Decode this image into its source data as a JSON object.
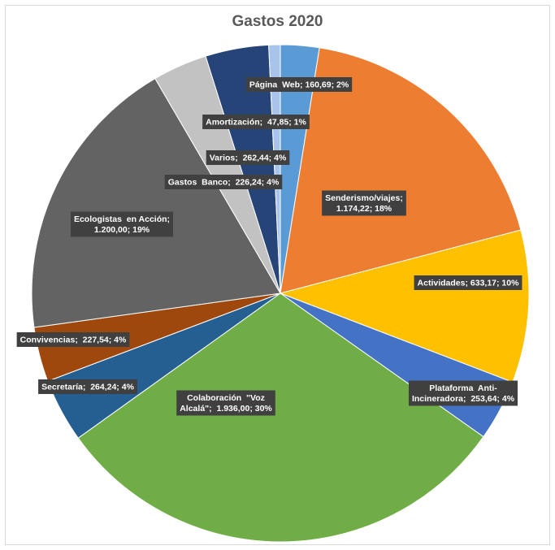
{
  "chart_data": {
    "type": "pie",
    "title": "Gastos 2020",
    "slices": [
      {
        "name": "Página Web",
        "value": "160,69",
        "percent": "2%",
        "color": "#5b9bd5",
        "label_lines": [
          "Página  Web; 160,69; 2%"
        ]
      },
      {
        "name": "Senderismo/viajes",
        "value": "1.174,22",
        "percent": "18%",
        "color": "#ed7d31",
        "label_lines": [
          "Senderismo/viajes;",
          "1.174,22; 18%"
        ]
      },
      {
        "name": "Actividades",
        "value": "633,17",
        "percent": "10%",
        "color": "#ffc000",
        "label_lines": [
          "Actividades; 633,17; 10%"
        ]
      },
      {
        "name": "Plataforma Anti-Incineradora",
        "value": "253,64",
        "percent": "4%",
        "color": "#4472c4",
        "label_lines": [
          "Plataforma  Anti-",
          "Incineradora;  253,64; 4%"
        ]
      },
      {
        "name": "Colaboración \"Voz Alcalá\"",
        "value": "1.936,00",
        "percent": "30%",
        "color": "#70ad47",
        "label_lines": [
          "Colaboración  \"Voz",
          "Alcalá\";  1.936,00; 30%"
        ]
      },
      {
        "name": "Secretaría",
        "value": "264,24",
        "percent": "4%",
        "color": "#255e91",
        "label_lines": [
          "Secretaría;  264,24; 4%"
        ]
      },
      {
        "name": "Convivencias",
        "value": "227,54",
        "percent": "4%",
        "color": "#9e480e",
        "label_lines": [
          "Convivencias;  227,54; 4%"
        ]
      },
      {
        "name": "Ecologistas en Acción",
        "value": "1.200,00",
        "percent": "19%",
        "color": "#636363",
        "label_lines": [
          "Ecologistas  en Acción;",
          "1.200,00; 19%"
        ]
      },
      {
        "name": "Gastos Banco",
        "value": "226,24",
        "percent": "4%",
        "color": "#c2c2c2",
        "label_lines": [
          "Gastos  Banco;  226,24; 4%"
        ]
      },
      {
        "name": "Varios",
        "value": "262,44",
        "percent": "4%",
        "color": "#264478",
        "label_lines": [
          "Varios;  262,44; 4%"
        ]
      },
      {
        "name": "Amortización",
        "value": "47,85",
        "percent": "1%",
        "color": "#a9c4eb",
        "label_lines": [
          "Amortización;  47,85; 1%"
        ]
      }
    ]
  }
}
